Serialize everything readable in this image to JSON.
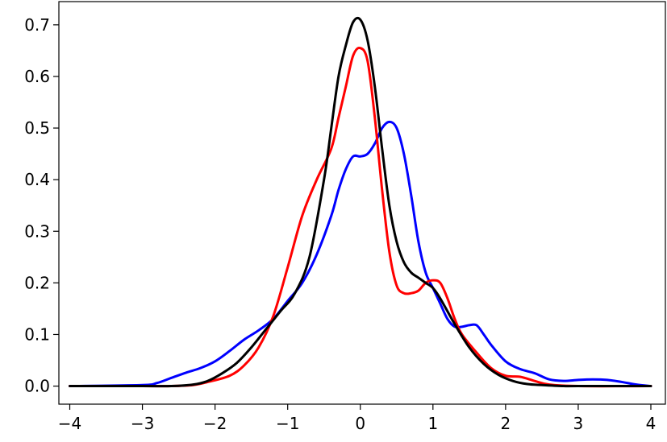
{
  "chart_data": {
    "type": "line",
    "title": "",
    "xlabel": "",
    "ylabel": "",
    "xlim": [
      -4.15,
      4.2
    ],
    "ylim": [
      -0.035,
      0.745
    ],
    "grid": false,
    "legend": "none",
    "xticks": [
      -4,
      -3,
      -2,
      -1,
      0,
      1,
      2,
      3,
      4
    ],
    "xtick_labels": [
      "−4",
      "−3",
      "−2",
      "−1",
      "0",
      "1",
      "2",
      "3",
      "4"
    ],
    "yticks": [
      0.0,
      0.1,
      0.2,
      0.3,
      0.4,
      0.5,
      0.6,
      0.7
    ],
    "ytick_labels": [
      "0.0",
      "0.1",
      "0.2",
      "0.3",
      "0.4",
      "0.5",
      "0.6",
      "0.7"
    ],
    "series": [
      {
        "color": "#0000ff",
        "x": [
          -4.0,
          -3.0,
          -2.8,
          -2.6,
          -2.4,
          -2.2,
          -2.0,
          -1.8,
          -1.6,
          -1.4,
          -1.2,
          -1.0,
          -0.8,
          -0.6,
          -0.4,
          -0.3,
          -0.2,
          -0.1,
          0.0,
          0.1,
          0.2,
          0.3,
          0.4,
          0.5,
          0.6,
          0.7,
          0.8,
          0.9,
          1.0,
          1.1,
          1.2,
          1.3,
          1.4,
          1.5,
          1.6,
          1.7,
          1.8,
          2.0,
          2.2,
          2.4,
          2.6,
          2.8,
          3.0,
          3.2,
          3.4,
          3.6,
          3.8,
          4.0
        ],
        "y": [
          0.0,
          0.002,
          0.006,
          0.016,
          0.026,
          0.035,
          0.048,
          0.068,
          0.09,
          0.108,
          0.13,
          0.165,
          0.2,
          0.255,
          0.33,
          0.38,
          0.42,
          0.445,
          0.445,
          0.45,
          0.47,
          0.5,
          0.512,
          0.5,
          0.45,
          0.37,
          0.28,
          0.22,
          0.19,
          0.16,
          0.13,
          0.115,
          0.115,
          0.118,
          0.118,
          0.1,
          0.08,
          0.048,
          0.033,
          0.025,
          0.013,
          0.01,
          0.012,
          0.013,
          0.012,
          0.008,
          0.003,
          0.0
        ]
      },
      {
        "color": "#ff0000",
        "x": [
          -4.0,
          -3.0,
          -2.6,
          -2.3,
          -2.1,
          -1.8,
          -1.6,
          -1.4,
          -1.2,
          -1.0,
          -0.8,
          -0.6,
          -0.4,
          -0.3,
          -0.2,
          -0.1,
          0.0,
          0.1,
          0.2,
          0.3,
          0.4,
          0.5,
          0.6,
          0.7,
          0.8,
          0.9,
          1.0,
          1.1,
          1.2,
          1.3,
          1.4,
          1.6,
          1.8,
          2.0,
          2.2,
          2.4,
          2.6,
          3.0,
          4.0
        ],
        "y": [
          0.0,
          0.0,
          0.0,
          0.002,
          0.008,
          0.02,
          0.04,
          0.075,
          0.135,
          0.23,
          0.33,
          0.4,
          0.46,
          0.52,
          0.58,
          0.64,
          0.655,
          0.63,
          0.52,
          0.38,
          0.26,
          0.195,
          0.18,
          0.18,
          0.185,
          0.2,
          0.205,
          0.2,
          0.17,
          0.13,
          0.1,
          0.065,
          0.035,
          0.02,
          0.018,
          0.01,
          0.003,
          0.0,
          0.0
        ]
      },
      {
        "color": "#000000",
        "x": [
          -4.0,
          -3.0,
          -2.6,
          -2.3,
          -2.1,
          -1.9,
          -1.7,
          -1.5,
          -1.3,
          -1.1,
          -0.9,
          -0.7,
          -0.5,
          -0.4,
          -0.3,
          -0.2,
          -0.1,
          0.0,
          0.1,
          0.2,
          0.3,
          0.4,
          0.5,
          0.6,
          0.7,
          0.8,
          0.9,
          1.0,
          1.1,
          1.3,
          1.5,
          1.7,
          1.9,
          2.1,
          2.3,
          2.5,
          2.8,
          3.0,
          4.0
        ],
        "y": [
          0.0,
          0.0,
          0.0,
          0.003,
          0.01,
          0.025,
          0.045,
          0.075,
          0.11,
          0.145,
          0.18,
          0.25,
          0.4,
          0.5,
          0.6,
          0.66,
          0.705,
          0.71,
          0.67,
          0.58,
          0.46,
          0.35,
          0.28,
          0.24,
          0.22,
          0.21,
          0.2,
          0.19,
          0.17,
          0.12,
          0.075,
          0.043,
          0.022,
          0.01,
          0.004,
          0.002,
          0.0,
          0.0,
          0.0
        ]
      }
    ]
  }
}
